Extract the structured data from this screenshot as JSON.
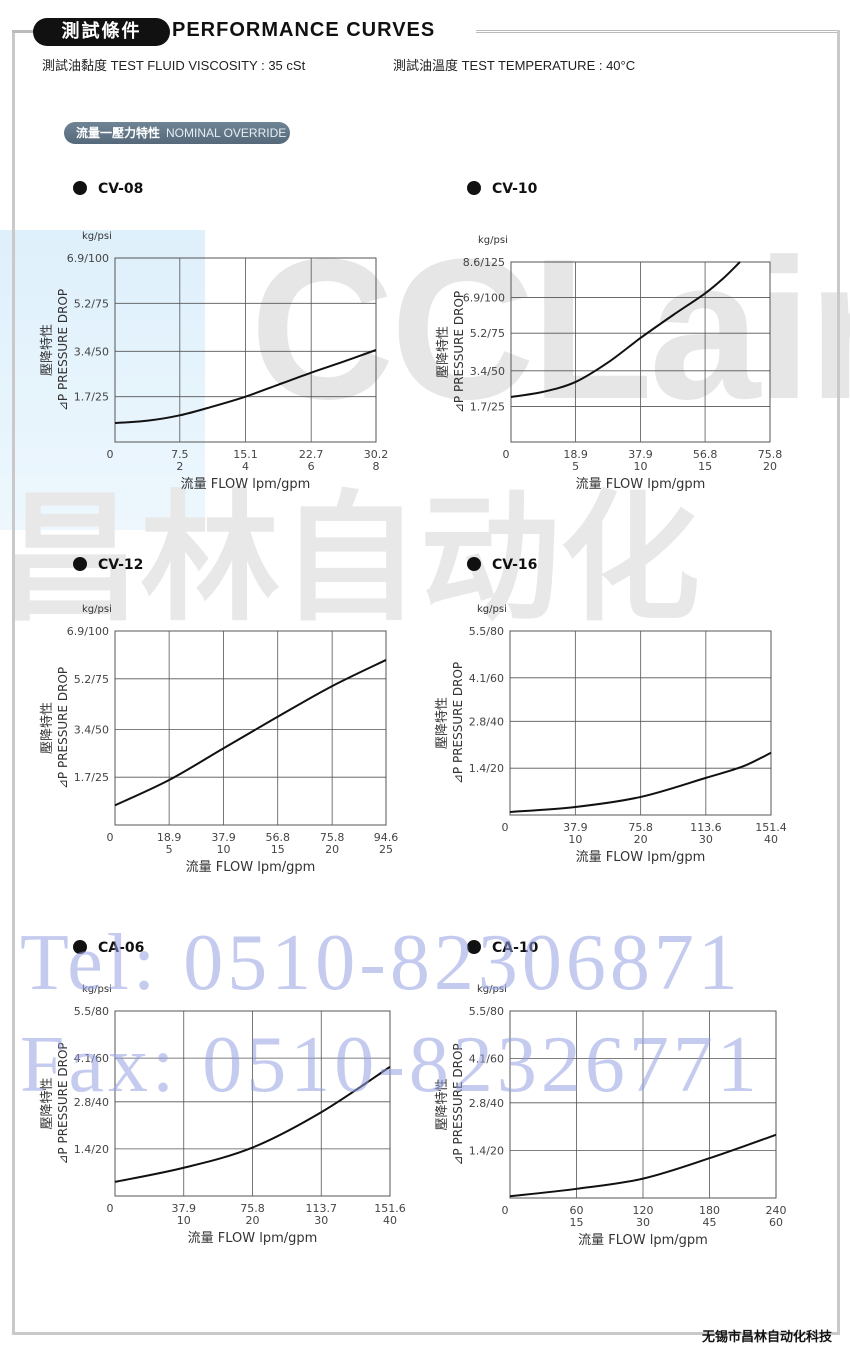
{
  "header": {
    "badge": "測試條件",
    "title": "PERFORMANCE CURVES",
    "viscosity": "測試油黏度  TEST FLUID VISCOSITY : 35 cSt",
    "temperature": "測試油溫度  TEST TEMPERATURE : 40°C"
  },
  "section": {
    "cn": "流量一壓力特性",
    "en": "NOMINAL OVERRIDE"
  },
  "watermark": {
    "logo": "CCLair",
    "cn": "昌林自动化",
    "tel": "Tel: 0510-82306871",
    "fax": "Fax: 0510-82326771"
  },
  "footer": "无锡市昌林自动化科技",
  "colors": {
    "curve": "#111111",
    "grid": "#555555",
    "telWatermark": "#a0a8e1"
  },
  "chart_data": [
    {
      "type": "line",
      "title": "CV-08",
      "unit_label": "kg/psi",
      "ylabel_cn": "壓降特性",
      "ylabel": "⊿P PRESSURE DROP",
      "xlabel": "流量 FLOW lpm/gpm",
      "x_ticks": [
        0,
        7.5,
        15.1,
        22.7,
        30.2
      ],
      "x_tick_labels": [
        "0",
        "7.5",
        "15.1",
        "22.7",
        "30.2"
      ],
      "x_tick_labels2": [
        "",
        "2",
        "4",
        "6",
        "8"
      ],
      "y_ticks": [
        1.7,
        3.4,
        5.2,
        6.9
      ],
      "y_tick_labels": [
        "1.7/25",
        "3.4/50",
        "5.2/75",
        "6.9/100"
      ],
      "xlim": [
        0,
        30.2
      ],
      "ylim": [
        0,
        6.9
      ],
      "grid": true,
      "x": [
        0,
        3.8,
        7.5,
        11.3,
        15.1,
        18.9,
        22.7,
        26.5,
        30.2
      ],
      "y": [
        0.71,
        0.8,
        1.0,
        1.33,
        1.7,
        2.15,
        2.6,
        3.02,
        3.45
      ]
    },
    {
      "type": "line",
      "title": "CV-10",
      "unit_label": "kg/psi",
      "ylabel_cn": "壓降特性",
      "ylabel": "⊿P PRESSURE DROP",
      "xlabel": "流量 FLOW lpm/gpm",
      "x_ticks": [
        0,
        18.9,
        37.9,
        56.8,
        75.8
      ],
      "x_tick_labels": [
        "0",
        "18.9",
        "37.9",
        "56.8",
        "75.8"
      ],
      "x_tick_labels2": [
        "",
        "5",
        "10",
        "15",
        "20"
      ],
      "y_ticks": [
        1.7,
        3.4,
        5.2,
        6.9,
        8.6
      ],
      "y_tick_labels": [
        "1.7/25",
        "3.4/50",
        "5.2/75",
        "6.9/100",
        "8.6/125"
      ],
      "xlim": [
        0,
        75.8
      ],
      "ylim": [
        0,
        8.6
      ],
      "grid": true,
      "x": [
        0,
        9.5,
        18.9,
        28.4,
        37.9,
        47.3,
        56.8,
        62,
        67
      ],
      "y": [
        2.15,
        2.4,
        2.87,
        3.8,
        4.97,
        6.05,
        7.1,
        7.8,
        8.6
      ]
    },
    {
      "type": "line",
      "title": "CV-12",
      "unit_label": "kg/psi",
      "ylabel_cn": "壓降特性",
      "ylabel": "⊿P PRESSURE DROP",
      "xlabel": "流量 FLOW lpm/gpm",
      "x_ticks": [
        0,
        18.9,
        37.9,
        56.8,
        75.8,
        94.6
      ],
      "x_tick_labels": [
        "0",
        "18.9",
        "37.9",
        "56.8",
        "75.8",
        "94.6"
      ],
      "x_tick_labels2": [
        "",
        "5",
        "10",
        "15",
        "20",
        "25"
      ],
      "y_ticks": [
        1.7,
        3.4,
        5.2,
        6.9
      ],
      "y_tick_labels": [
        "1.7/25",
        "3.4/50",
        "5.2/75",
        "6.9/100"
      ],
      "xlim": [
        0,
        94.6
      ],
      "ylim": [
        0,
        6.9
      ],
      "grid": true,
      "x": [
        0,
        18.9,
        37.9,
        56.8,
        75.8,
        94.6
      ],
      "y": [
        0.7,
        1.6,
        2.73,
        3.85,
        4.94,
        5.87
      ]
    },
    {
      "type": "line",
      "title": "CV-16",
      "unit_label": "kg/psi",
      "ylabel_cn": "壓降特性",
      "ylabel": "⊿P PRESSURE DROP",
      "xlabel": "流量 FLOW lpm/gpm",
      "x_ticks": [
        0,
        37.9,
        75.8,
        113.6,
        151.4
      ],
      "x_tick_labels": [
        "0",
        "37.9",
        "75.8",
        "113.6",
        "151.4"
      ],
      "x_tick_labels2": [
        "",
        "10",
        "20",
        "30",
        "40"
      ],
      "y_ticks": [
        1.4,
        2.8,
        4.1,
        5.5
      ],
      "y_tick_labels": [
        "1.4/20",
        "2.8/40",
        "4.1/60",
        "5.5/80"
      ],
      "xlim": [
        0,
        151.4
      ],
      "ylim": [
        0,
        5.5
      ],
      "grid": true,
      "x": [
        0,
        37.9,
        75.8,
        113.6,
        135,
        151.4
      ],
      "y": [
        0.09,
        0.24,
        0.54,
        1.11,
        1.45,
        1.86
      ]
    },
    {
      "type": "line",
      "title": "CA-06",
      "unit_label": "kg/psi",
      "ylabel_cn": "壓降特性",
      "ylabel": "⊿P PRESSURE DROP",
      "xlabel": "流量 FLOW lpm/gpm",
      "x_ticks": [
        0,
        37.9,
        75.8,
        113.7,
        151.6
      ],
      "x_tick_labels": [
        "0",
        "37.9",
        "75.8",
        "113.7",
        "151.6"
      ],
      "x_tick_labels2": [
        "",
        "10",
        "20",
        "30",
        "40"
      ],
      "y_ticks": [
        1.4,
        2.8,
        4.1,
        5.5
      ],
      "y_tick_labels": [
        "1.4/20",
        "2.8/40",
        "4.1/60",
        "5.5/80"
      ],
      "xlim": [
        0,
        151.6
      ],
      "ylim": [
        0,
        5.5
      ],
      "grid": true,
      "x": [
        0,
        37.9,
        75.8,
        113.7,
        151.6
      ],
      "y": [
        0.42,
        0.84,
        1.44,
        2.49,
        3.84
      ]
    },
    {
      "type": "line",
      "title": "CA-10",
      "unit_label": "kg/psi",
      "ylabel_cn": "壓降特性",
      "ylabel": "⊿P PRESSURE DROP",
      "xlabel": "流量 FLOW lpm/gpm",
      "x_ticks": [
        0,
        60,
        120,
        180,
        240
      ],
      "x_tick_labels": [
        "0",
        "60",
        "120",
        "180",
        "240"
      ],
      "x_tick_labels2": [
        "",
        "15",
        "30",
        "45",
        "60"
      ],
      "y_ticks": [
        1.4,
        2.8,
        4.1,
        5.5
      ],
      "y_tick_labels": [
        "1.4/20",
        "2.8/40",
        "4.1/60",
        "5.5/80"
      ],
      "xlim": [
        0,
        240
      ],
      "ylim": [
        0,
        5.5
      ],
      "grid": true,
      "x": [
        0,
        60,
        120,
        180,
        240
      ],
      "y": [
        0.05,
        0.27,
        0.57,
        1.17,
        1.86
      ]
    }
  ]
}
